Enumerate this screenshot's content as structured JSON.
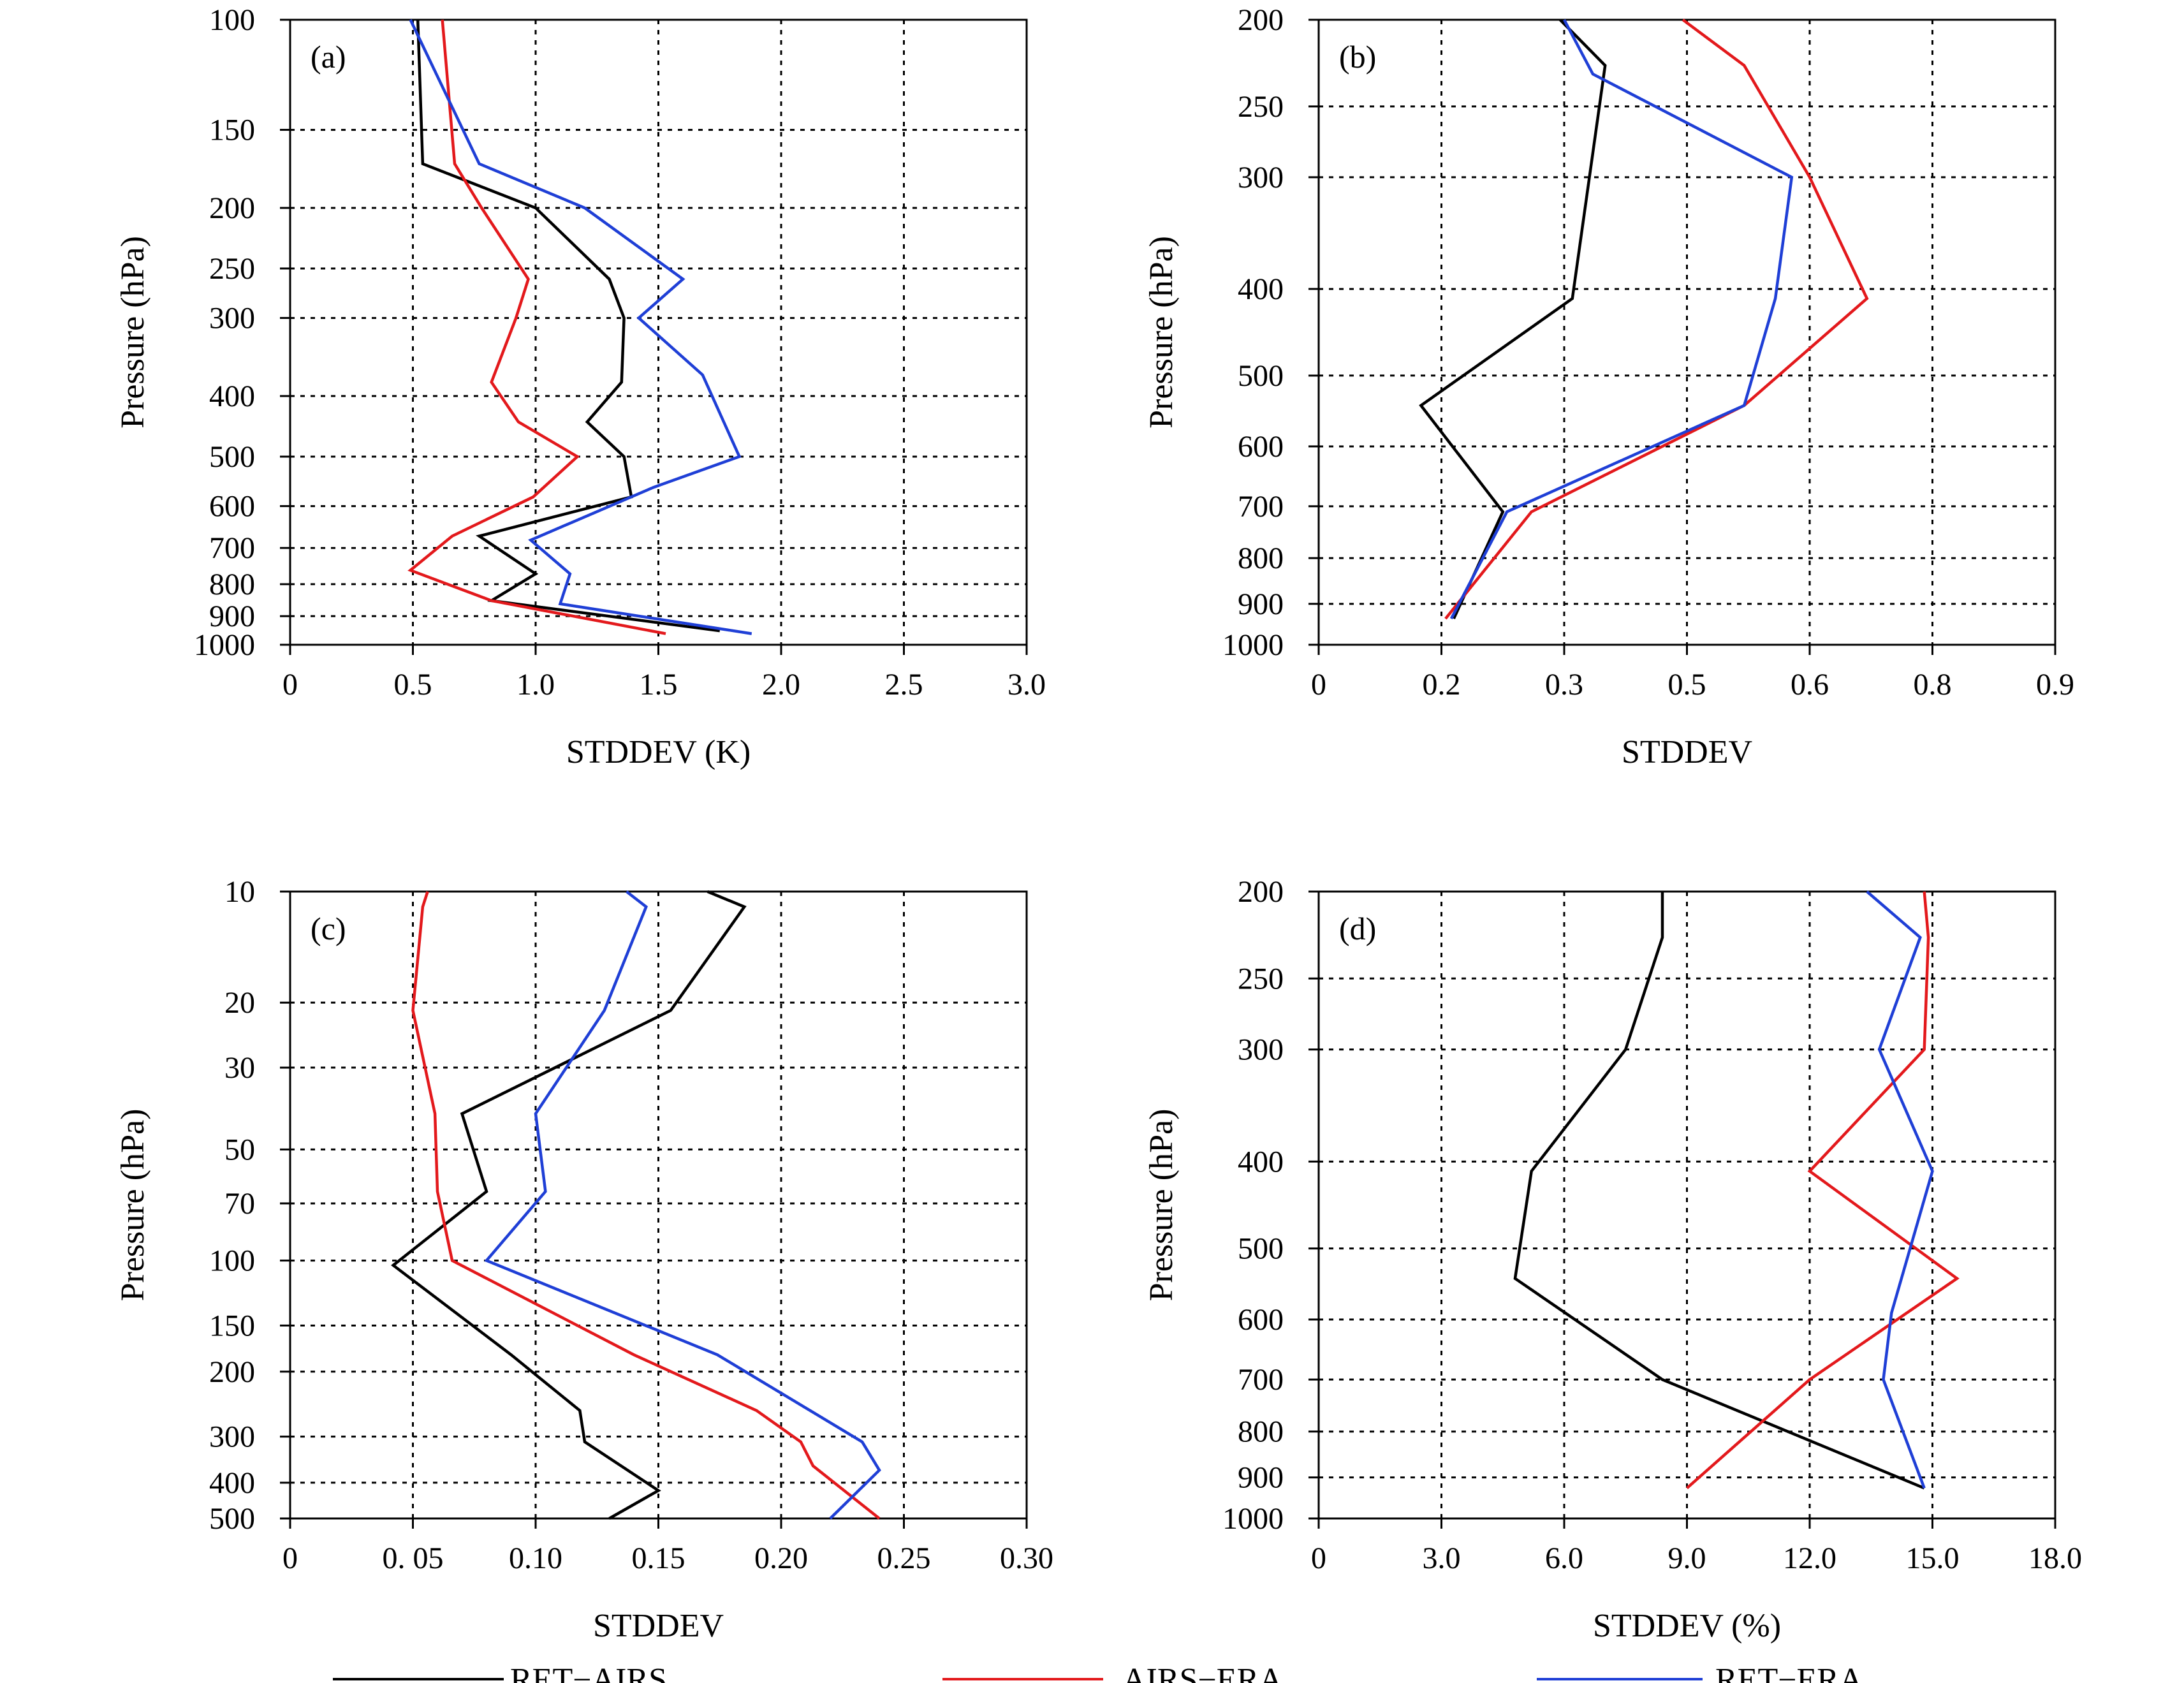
{
  "figure": {
    "legend": [
      {
        "name": "RET−AIRS",
        "color": "#000000"
      },
      {
        "name": "AIRS−ERA",
        "color": "#e3191c"
      },
      {
        "name": "RET−ERA",
        "color": "#1f3fd6"
      }
    ]
  },
  "chart_data": [
    {
      "type": "line",
      "panel": "(a)",
      "xlabel": "STDDEV (K)",
      "ylabel": "Pressure (hPa)",
      "xlim": [
        0,
        3.0
      ],
      "ylim": [
        100,
        1000
      ],
      "yscale": "log",
      "xticks": [
        {
          "v": 0,
          "label": "0"
        },
        {
          "v": 0.5,
          "label": "0.5"
        },
        {
          "v": 1.0,
          "label": "1.0"
        },
        {
          "v": 1.5,
          "label": "1.5"
        },
        {
          "v": 2.0,
          "label": "2.0"
        },
        {
          "v": 2.5,
          "label": "2.5"
        },
        {
          "v": 3.0,
          "label": "3.0"
        }
      ],
      "yticks": [
        {
          "v": 100,
          "label": "100"
        },
        {
          "v": 150,
          "label": "150"
        },
        {
          "v": 200,
          "label": "200"
        },
        {
          "v": 250,
          "label": "250"
        },
        {
          "v": 300,
          "label": "300"
        },
        {
          "v": 400,
          "label": "400"
        },
        {
          "v": 500,
          "label": "500"
        },
        {
          "v": 600,
          "label": "600"
        },
        {
          "v": 700,
          "label": "700"
        },
        {
          "v": 800,
          "label": "800"
        },
        {
          "v": 900,
          "label": "900"
        },
        {
          "v": 1000,
          "label": "1000"
        }
      ],
      "grid": true,
      "series": [
        {
          "name": "RET−AIRS",
          "points": [
            [
              0.52,
              100
            ],
            [
              0.54,
              170
            ],
            [
              1.0,
              200
            ],
            [
              1.3,
              260
            ],
            [
              1.36,
              300
            ],
            [
              1.35,
              380
            ],
            [
              1.21,
              440
            ],
            [
              1.36,
              500
            ],
            [
              1.39,
              580
            ],
            [
              0.77,
              670
            ],
            [
              1.0,
              770
            ],
            [
              0.82,
              850
            ],
            [
              1.75,
              950
            ]
          ]
        },
        {
          "name": "AIRS−ERA",
          "points": [
            [
              0.62,
              100
            ],
            [
              0.67,
              170
            ],
            [
              0.78,
              200
            ],
            [
              0.97,
              260
            ],
            [
              0.92,
              300
            ],
            [
              0.82,
              380
            ],
            [
              0.93,
              440
            ],
            [
              1.17,
              500
            ],
            [
              0.99,
              580
            ],
            [
              0.66,
              670
            ],
            [
              0.49,
              760
            ],
            [
              0.82,
              850
            ],
            [
              1.53,
              960
            ]
          ]
        },
        {
          "name": "RET−ERA",
          "points": [
            [
              0.49,
              100
            ],
            [
              0.77,
              170
            ],
            [
              1.2,
              200
            ],
            [
              1.6,
              260
            ],
            [
              1.42,
              300
            ],
            [
              1.68,
              370
            ],
            [
              1.83,
              500
            ],
            [
              1.48,
              560
            ],
            [
              0.98,
              680
            ],
            [
              1.14,
              770
            ],
            [
              1.1,
              860
            ],
            [
              1.88,
              960
            ]
          ]
        }
      ]
    },
    {
      "type": "line",
      "panel": "(b)",
      "xlabel": "STDDEV",
      "ylabel": "Pressure (hPa)",
      "xlim": [
        0,
        0.9
      ],
      "ylim": [
        200,
        1000
      ],
      "yscale": "log",
      "xticks": [
        {
          "v": 0,
          "label": "0"
        },
        {
          "v": 0.15,
          "label": "0.2"
        },
        {
          "v": 0.3,
          "label": "0.3"
        },
        {
          "v": 0.45,
          "label": "0.5"
        },
        {
          "v": 0.6,
          "label": "0.6"
        },
        {
          "v": 0.75,
          "label": "0.8"
        },
        {
          "v": 0.9,
          "label": "0.9"
        }
      ],
      "yticks": [
        {
          "v": 200,
          "label": "200"
        },
        {
          "v": 250,
          "label": "250"
        },
        {
          "v": 300,
          "label": "300"
        },
        {
          "v": 400,
          "label": "400"
        },
        {
          "v": 500,
          "label": "500"
        },
        {
          "v": 600,
          "label": "600"
        },
        {
          "v": 700,
          "label": "700"
        },
        {
          "v": 800,
          "label": "800"
        },
        {
          "v": 900,
          "label": "900"
        },
        {
          "v": 1000,
          "label": "1000"
        }
      ],
      "grid": true,
      "series": [
        {
          "name": "RET−AIRS",
          "points": [
            [
              0.295,
              200
            ],
            [
              0.35,
              225
            ],
            [
              0.31,
              410
            ],
            [
              0.125,
              540
            ],
            [
              0.225,
              710
            ],
            [
              0.165,
              935
            ]
          ]
        },
        {
          "name": "AIRS−ERA",
          "points": [
            [
              0.445,
              200
            ],
            [
              0.52,
              225
            ],
            [
              0.6,
              300
            ],
            [
              0.67,
              410
            ],
            [
              0.52,
              540
            ],
            [
              0.26,
              710
            ],
            [
              0.155,
              935
            ]
          ]
        },
        {
          "name": "RET−ERA",
          "points": [
            [
              0.3,
              200
            ],
            [
              0.335,
              230
            ],
            [
              0.578,
              300
            ],
            [
              0.558,
              410
            ],
            [
              0.52,
              540
            ],
            [
              0.23,
              710
            ],
            [
              0.162,
              935
            ]
          ]
        }
      ]
    },
    {
      "type": "line",
      "panel": "(c)",
      "xlabel": "STDDEV",
      "ylabel": "Pressure (hPa)",
      "xlim": [
        0,
        0.3
      ],
      "ylim": [
        10,
        500
      ],
      "yscale": "log",
      "xticks": [
        {
          "v": 0,
          "label": "0"
        },
        {
          "v": 0.05,
          "label": "0. 05"
        },
        {
          "v": 0.1,
          "label": "0.10"
        },
        {
          "v": 0.15,
          "label": "0.15"
        },
        {
          "v": 0.2,
          "label": "0.20"
        },
        {
          "v": 0.25,
          "label": "0.25"
        },
        {
          "v": 0.3,
          "label": "0.30"
        }
      ],
      "yticks": [
        {
          "v": 10,
          "label": "10"
        },
        {
          "v": 20,
          "label": "20"
        },
        {
          "v": 30,
          "label": "30"
        },
        {
          "v": 50,
          "label": "50"
        },
        {
          "v": 70,
          "label": "70"
        },
        {
          "v": 100,
          "label": "100"
        },
        {
          "v": 150,
          "label": "150"
        },
        {
          "v": 200,
          "label": "200"
        },
        {
          "v": 300,
          "label": "300"
        },
        {
          "v": 400,
          "label": "400"
        },
        {
          "v": 500,
          "label": "500"
        }
      ],
      "grid": true,
      "series": [
        {
          "name": "RET−AIRS",
          "points": [
            [
              0.17,
              10
            ],
            [
              0.185,
              11
            ],
            [
              0.155,
              21
            ],
            [
              0.07,
              40
            ],
            [
              0.08,
              65
            ],
            [
              0.042,
              103
            ],
            [
              0.09,
              180
            ],
            [
              0.118,
              255
            ],
            [
              0.12,
              310
            ],
            [
              0.15,
              420
            ],
            [
              0.13,
              500
            ]
          ]
        },
        {
          "name": "AIRS−ERA",
          "points": [
            [
              0.056,
              10
            ],
            [
              0.054,
              11
            ],
            [
              0.05,
              21
            ],
            [
              0.059,
              40
            ],
            [
              0.06,
              65
            ],
            [
              0.066,
              100
            ],
            [
              0.14,
              180
            ],
            [
              0.19,
              255
            ],
            [
              0.208,
              310
            ],
            [
              0.213,
              360
            ],
            [
              0.24,
              500
            ]
          ]
        },
        {
          "name": "RET−ERA",
          "points": [
            [
              0.137,
              10
            ],
            [
              0.145,
              11
            ],
            [
              0.128,
              21
            ],
            [
              0.1,
              40
            ],
            [
              0.104,
              65
            ],
            [
              0.08,
              100
            ],
            [
              0.174,
              180
            ],
            [
              0.233,
              310
            ],
            [
              0.24,
              370
            ],
            [
              0.22,
              500
            ]
          ]
        }
      ]
    },
    {
      "type": "line",
      "panel": "(d)",
      "xlabel": "STDDEV (%)",
      "ylabel": "Pressure (hPa)",
      "xlim": [
        0,
        18.0
      ],
      "ylim": [
        200,
        1000
      ],
      "yscale": "log",
      "xticks": [
        {
          "v": 0,
          "label": "0"
        },
        {
          "v": 3,
          "label": "3.0"
        },
        {
          "v": 6,
          "label": "6.0"
        },
        {
          "v": 9,
          "label": "9.0"
        },
        {
          "v": 12,
          "label": "12.0"
        },
        {
          "v": 15,
          "label": "15.0"
        },
        {
          "v": 18,
          "label": "18.0"
        }
      ],
      "yticks": [
        {
          "v": 200,
          "label": "200"
        },
        {
          "v": 250,
          "label": "250"
        },
        {
          "v": 300,
          "label": "300"
        },
        {
          "v": 400,
          "label": "400"
        },
        {
          "v": 500,
          "label": "500"
        },
        {
          "v": 600,
          "label": "600"
        },
        {
          "v": 700,
          "label": "700"
        },
        {
          "v": 800,
          "label": "800"
        },
        {
          "v": 900,
          "label": "900"
        },
        {
          "v": 1000,
          "label": "1000"
        }
      ],
      "grid": true,
      "series": [
        {
          "name": "RET−AIRS",
          "points": [
            [
              8.4,
              200
            ],
            [
              8.4,
              225
            ],
            [
              7.5,
              300
            ],
            [
              5.2,
              410
            ],
            [
              4.8,
              540
            ],
            [
              8.4,
              700
            ],
            [
              14.8,
              925
            ]
          ]
        },
        {
          "name": "AIRS−ERA",
          "points": [
            [
              14.8,
              200
            ],
            [
              14.9,
              225
            ],
            [
              14.8,
              300
            ],
            [
              12.0,
              410
            ],
            [
              15.6,
              540
            ],
            [
              12.0,
              700
            ],
            [
              9.0,
              925
            ]
          ]
        },
        {
          "name": "RET−ERA",
          "points": [
            [
              13.4,
              200
            ],
            [
              14.7,
              225
            ],
            [
              13.7,
              300
            ],
            [
              15.0,
              410
            ],
            [
              14.0,
              590
            ],
            [
              13.8,
              700
            ],
            [
              14.8,
              925
            ]
          ]
        }
      ]
    }
  ]
}
